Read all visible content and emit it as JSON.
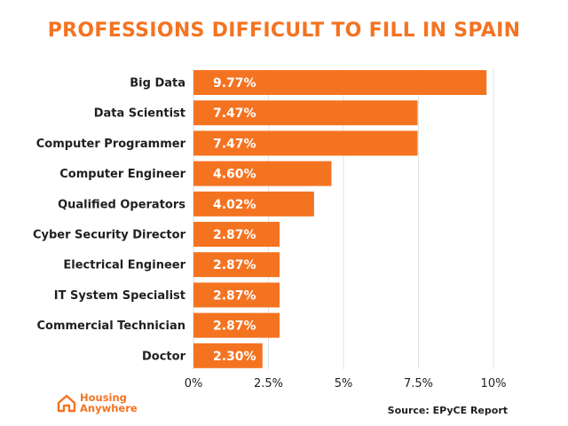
{
  "chart_data": {
    "type": "bar",
    "orientation": "horizontal",
    "title": "PROFESSIONS DIFFICULT TO FILL IN SPAIN",
    "categories": [
      "Big Data",
      "Data Scientist",
      "Computer Programmer",
      "Computer Engineer",
      "Qualified Operators",
      "Cyber Security Director",
      "Electrical Engineer",
      "IT System Specialist",
      "Commercial Technician",
      "Doctor"
    ],
    "values": [
      9.77,
      7.47,
      7.47,
      4.6,
      4.02,
      2.87,
      2.87,
      2.87,
      2.87,
      2.3
    ],
    "value_labels": [
      "9.77%",
      "7.47%",
      "7.47%",
      "4.60%",
      "4.02%",
      "2.87%",
      "2.87%",
      "2.87%",
      "2.87%",
      "2.30%"
    ],
    "xlim": [
      0,
      10
    ],
    "xticks": [
      0,
      2.5,
      5,
      7.5,
      10
    ],
    "xtick_labels": [
      "0%",
      "2.5%",
      "5%",
      "7.5%",
      "10%"
    ],
    "xlabel": "",
    "ylabel": "",
    "grid": true,
    "bar_color": "#f47321"
  },
  "footer": {
    "logo_line1": "Housing",
    "logo_line2": "Anywhere",
    "logo_icon": "house-icon",
    "source": "Source: EPyCE Report"
  },
  "colors": {
    "accent": "#f47321",
    "text": "#1f1f1f",
    "grid": "#e2e2e2"
  }
}
